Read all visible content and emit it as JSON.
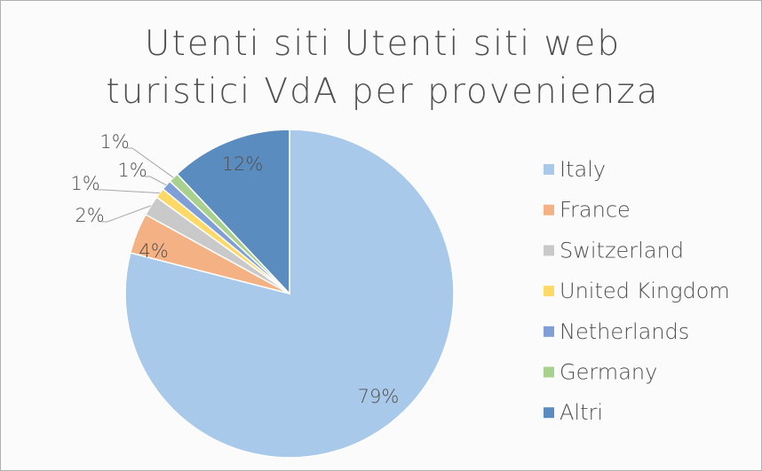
{
  "chart_data": {
    "type": "pie",
    "title": "Utenti siti Utenti siti web turistici VdA per provenienza",
    "categories": [
      "Italy",
      "France",
      "Switzerland",
      "United Kingdom",
      "Netherlands",
      "Germany",
      "Altri"
    ],
    "values": [
      79,
      4,
      2,
      1,
      1,
      1,
      12
    ],
    "value_labels": [
      "79%",
      "4%",
      "2%",
      "1%",
      "1%",
      "1%",
      "12%"
    ],
    "colors": [
      "#a9c9ea",
      "#f4b183",
      "#c9c9c9",
      "#ffd966",
      "#7f9fd6",
      "#a9d18e",
      "#5b8cbf"
    ],
    "legend": "right"
  }
}
